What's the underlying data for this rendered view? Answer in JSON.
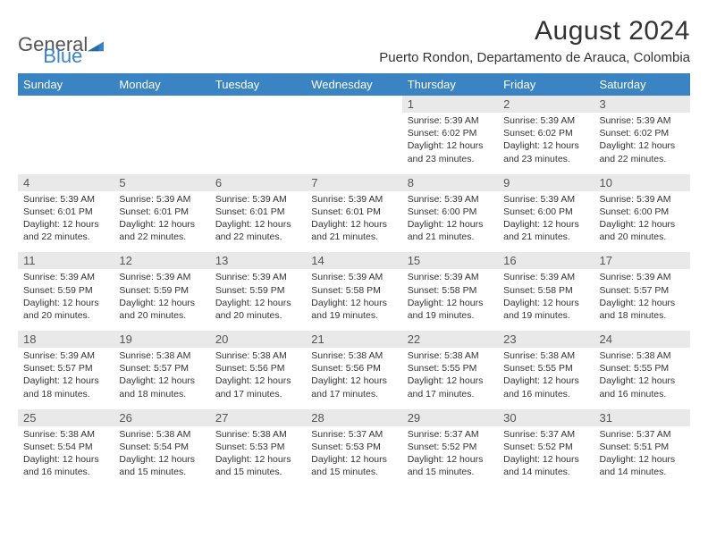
{
  "logo": {
    "text1": "General",
    "text2": "Blue"
  },
  "title": "August 2024",
  "subtitle": "Puerto Rondon, Departamento de Arauca, Colombia",
  "colors": {
    "header_bg": "#3a84c4",
    "header_text": "#ffffff",
    "daynum_bg": "#e9e9e9",
    "page_bg": "#ffffff",
    "body_text": "#333333",
    "logo_gray": "#555555",
    "logo_blue": "#3a84c4"
  },
  "day_headers": [
    "Sunday",
    "Monday",
    "Tuesday",
    "Wednesday",
    "Thursday",
    "Friday",
    "Saturday"
  ],
  "weeks": [
    {
      "nums": [
        "",
        "",
        "",
        "",
        "1",
        "2",
        "3"
      ],
      "cells": [
        null,
        null,
        null,
        null,
        {
          "sunrise": "5:39 AM",
          "sunset": "6:02 PM",
          "daylight": "12 hours and 23 minutes."
        },
        {
          "sunrise": "5:39 AM",
          "sunset": "6:02 PM",
          "daylight": "12 hours and 23 minutes."
        },
        {
          "sunrise": "5:39 AM",
          "sunset": "6:02 PM",
          "daylight": "12 hours and 22 minutes."
        }
      ]
    },
    {
      "nums": [
        "4",
        "5",
        "6",
        "7",
        "8",
        "9",
        "10"
      ],
      "cells": [
        {
          "sunrise": "5:39 AM",
          "sunset": "6:01 PM",
          "daylight": "12 hours and 22 minutes."
        },
        {
          "sunrise": "5:39 AM",
          "sunset": "6:01 PM",
          "daylight": "12 hours and 22 minutes."
        },
        {
          "sunrise": "5:39 AM",
          "sunset": "6:01 PM",
          "daylight": "12 hours and 22 minutes."
        },
        {
          "sunrise": "5:39 AM",
          "sunset": "6:01 PM",
          "daylight": "12 hours and 21 minutes."
        },
        {
          "sunrise": "5:39 AM",
          "sunset": "6:00 PM",
          "daylight": "12 hours and 21 minutes."
        },
        {
          "sunrise": "5:39 AM",
          "sunset": "6:00 PM",
          "daylight": "12 hours and 21 minutes."
        },
        {
          "sunrise": "5:39 AM",
          "sunset": "6:00 PM",
          "daylight": "12 hours and 20 minutes."
        }
      ]
    },
    {
      "nums": [
        "11",
        "12",
        "13",
        "14",
        "15",
        "16",
        "17"
      ],
      "cells": [
        {
          "sunrise": "5:39 AM",
          "sunset": "5:59 PM",
          "daylight": "12 hours and 20 minutes."
        },
        {
          "sunrise": "5:39 AM",
          "sunset": "5:59 PM",
          "daylight": "12 hours and 20 minutes."
        },
        {
          "sunrise": "5:39 AM",
          "sunset": "5:59 PM",
          "daylight": "12 hours and 20 minutes."
        },
        {
          "sunrise": "5:39 AM",
          "sunset": "5:58 PM",
          "daylight": "12 hours and 19 minutes."
        },
        {
          "sunrise": "5:39 AM",
          "sunset": "5:58 PM",
          "daylight": "12 hours and 19 minutes."
        },
        {
          "sunrise": "5:39 AM",
          "sunset": "5:58 PM",
          "daylight": "12 hours and 19 minutes."
        },
        {
          "sunrise": "5:39 AM",
          "sunset": "5:57 PM",
          "daylight": "12 hours and 18 minutes."
        }
      ]
    },
    {
      "nums": [
        "18",
        "19",
        "20",
        "21",
        "22",
        "23",
        "24"
      ],
      "cells": [
        {
          "sunrise": "5:39 AM",
          "sunset": "5:57 PM",
          "daylight": "12 hours and 18 minutes."
        },
        {
          "sunrise": "5:38 AM",
          "sunset": "5:57 PM",
          "daylight": "12 hours and 18 minutes."
        },
        {
          "sunrise": "5:38 AM",
          "sunset": "5:56 PM",
          "daylight": "12 hours and 17 minutes."
        },
        {
          "sunrise": "5:38 AM",
          "sunset": "5:56 PM",
          "daylight": "12 hours and 17 minutes."
        },
        {
          "sunrise": "5:38 AM",
          "sunset": "5:55 PM",
          "daylight": "12 hours and 17 minutes."
        },
        {
          "sunrise": "5:38 AM",
          "sunset": "5:55 PM",
          "daylight": "12 hours and 16 minutes."
        },
        {
          "sunrise": "5:38 AM",
          "sunset": "5:55 PM",
          "daylight": "12 hours and 16 minutes."
        }
      ]
    },
    {
      "nums": [
        "25",
        "26",
        "27",
        "28",
        "29",
        "30",
        "31"
      ],
      "cells": [
        {
          "sunrise": "5:38 AM",
          "sunset": "5:54 PM",
          "daylight": "12 hours and 16 minutes."
        },
        {
          "sunrise": "5:38 AM",
          "sunset": "5:54 PM",
          "daylight": "12 hours and 15 minutes."
        },
        {
          "sunrise": "5:38 AM",
          "sunset": "5:53 PM",
          "daylight": "12 hours and 15 minutes."
        },
        {
          "sunrise": "5:37 AM",
          "sunset": "5:53 PM",
          "daylight": "12 hours and 15 minutes."
        },
        {
          "sunrise": "5:37 AM",
          "sunset": "5:52 PM",
          "daylight": "12 hours and 15 minutes."
        },
        {
          "sunrise": "5:37 AM",
          "sunset": "5:52 PM",
          "daylight": "12 hours and 14 minutes."
        },
        {
          "sunrise": "5:37 AM",
          "sunset": "5:51 PM",
          "daylight": "12 hours and 14 minutes."
        }
      ]
    }
  ],
  "labels": {
    "sunrise": "Sunrise: ",
    "sunset": "Sunset: ",
    "daylight": "Daylight: "
  }
}
